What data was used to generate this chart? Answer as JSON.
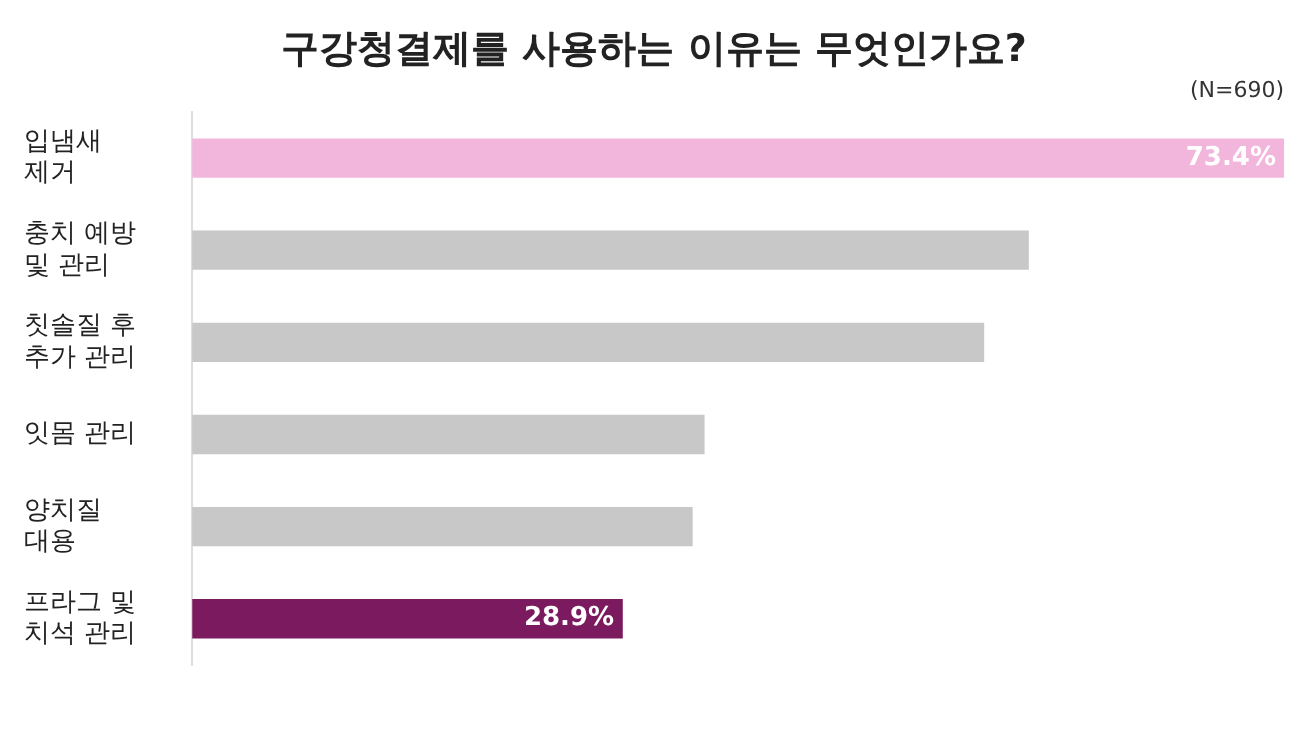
{
  "chart_data": {
    "type": "bar",
    "orientation": "horizontal",
    "title": "구강청결제를 사용하는 이유는 무엇인가요?",
    "subtitle": "(N=690)",
    "categories": [
      "입냄새\n제거",
      "충치 예방\n및 관리",
      "칫솔질 후\n추가 관리",
      "잇몸 관리",
      "양치질\n대용",
      "프라그 및\n치석 관리"
    ],
    "values": [
      73.4,
      56.2,
      53.2,
      34.4,
      33.6,
      28.9
    ],
    "colors": [
      "#f2b6dc",
      "#c8c8c8",
      "#c8c8c8",
      "#c8c8c8",
      "#c8c8c8",
      "#7b1a5e"
    ],
    "value_labels": [
      "73.4%",
      null,
      null,
      null,
      null,
      "28.9%"
    ],
    "legend": false
  }
}
